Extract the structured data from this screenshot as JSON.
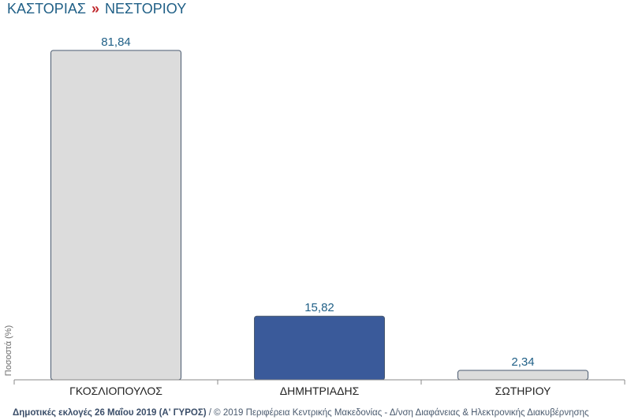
{
  "title": {
    "location": "ΚΑΣΤΟΡΙΑΣ",
    "separator": "»",
    "sublocation": "ΝΕΣΤΟΡΙΟΥ"
  },
  "footer": {
    "election": "Δημοτικές εκλογές 26 Μαΐου 2019 (Α' ΓΥΡΟΣ)",
    "credit": " / © 2019 Περιφέρεια Κεντρικής Μακεδονίας - Δ/νση Διαφάνειας & Ηλεκτρονικής Διακυβέρνησης"
  },
  "colors": {
    "default_bar": "#dcdcdc",
    "highlight_bar": "#3a5a9a",
    "bar_stroke": "#4a5a70",
    "value_label": "#1f5f86",
    "axis": "#888888"
  },
  "chart_data": {
    "type": "bar",
    "title": "ΚΑΣΤΟΡΙΑΣ » ΝΕΣΤΟΡΙΟΥ",
    "xlabel": "",
    "ylabel": "Ποσοστά (%)",
    "categories": [
      "ΓΚΟΣΛΙΟΠΟΥΛΟΣ",
      "ΔΗΜΗΤΡΙΑΔΗΣ",
      "ΣΩΤΗΡΙΟΥ"
    ],
    "values": [
      81.84,
      15.82,
      2.34
    ],
    "value_labels": [
      "81,84",
      "15,82",
      "2,34"
    ],
    "highlighted": [
      false,
      true,
      false
    ],
    "ylim": [
      0,
      81.84
    ],
    "grid": false,
    "legend": "none"
  }
}
